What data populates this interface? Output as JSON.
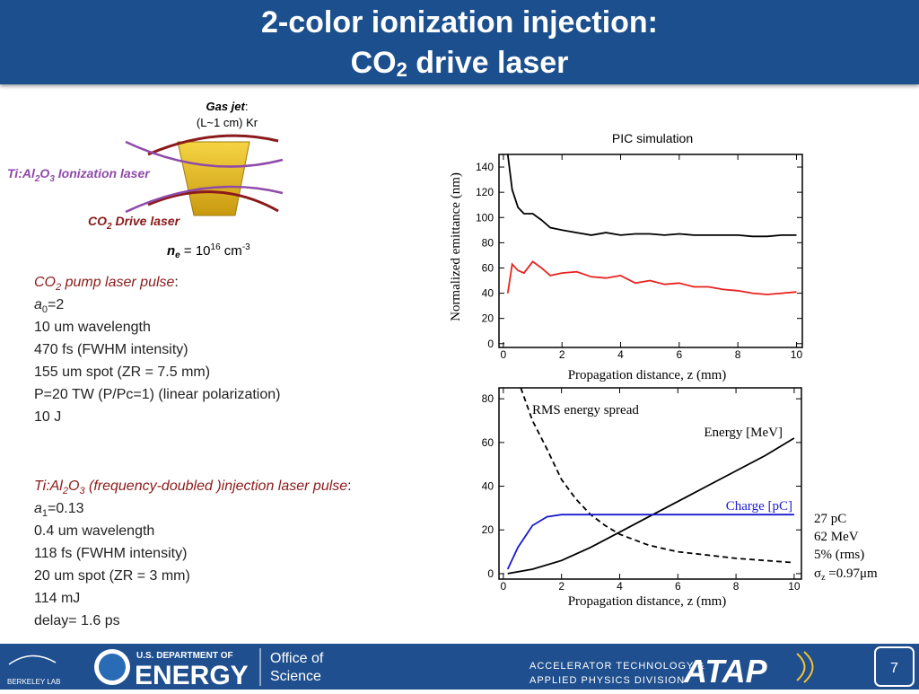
{
  "header": {
    "title_line1": "2-color ionization injection:",
    "title_line2": [
      "CO",
      "2",
      " drive laser"
    ]
  },
  "diagram": {
    "gas_jet": [
      "Gas jet",
      ":"
    ],
    "gas_spec": "(L~1 cm) Kr",
    "ionization_laser": [
      "Ti:Al",
      "2",
      "O",
      "3",
      " Ionization laser"
    ],
    "drive_laser": [
      "CO",
      "2",
      " Drive laser"
    ],
    "density": [
      "n",
      "e",
      " = 10",
      "16",
      " cm",
      "-3"
    ]
  },
  "pump": {
    "title": [
      "CO",
      "2",
      " pump laser pulse",
      ":"
    ],
    "a0": [
      "a",
      "0",
      "=2"
    ],
    "lines": [
      "10 um wavelength",
      "470 fs (FWHM intensity)",
      "155 um spot (ZR = 7.5 mm)",
      "P=20 TW  (P/Pc=1) (linear polarization)",
      "10 J"
    ]
  },
  "injection": {
    "title": [
      "Ti:Al",
      "2",
      "O",
      "3",
      " (frequency-doubled )injection laser pulse",
      ":"
    ],
    "a1": [
      "a",
      "1",
      "=0.13"
    ],
    "lines": [
      "0.4 um wavelength",
      "118 fs (FWHM intensity)",
      "20 um spot (ZR = 3 mm)",
      "114 mJ",
      "delay= 1.6 ps"
    ]
  },
  "results": [
    "27 pC",
    "62 MeV",
    "5% (rms)"
  ],
  "sigma": [
    "σ",
    "z",
    " =0.97μm"
  ],
  "chart_data": [
    {
      "type": "line",
      "title": "PIC simulation",
      "y_label": "Normalized emittance (nm)",
      "x_label": "Propagation distance, z (mm)",
      "xlim": [
        -0.15,
        10.2
      ],
      "ylim": [
        -3,
        150
      ],
      "xticks": [
        0,
        2,
        4,
        6,
        8,
        10
      ],
      "yticks": [
        0,
        20,
        40,
        60,
        80,
        100,
        120,
        140
      ],
      "series": [
        {
          "color": "#000000",
          "x": [
            0.15,
            0.3,
            0.5,
            0.7,
            1,
            1.3,
            1.6,
            2,
            2.5,
            3,
            3.5,
            4,
            4.5,
            5,
            5.5,
            6,
            6.5,
            7,
            7.5,
            8,
            8.5,
            9,
            9.5,
            10
          ],
          "values": [
            150,
            122,
            108,
            103,
            103,
            98,
            92,
            90,
            88,
            86,
            88,
            86,
            87,
            87,
            86,
            87,
            86,
            86,
            86,
            86,
            85,
            85,
            86,
            86
          ]
        },
        {
          "color": "#e8221f",
          "x": [
            0.15,
            0.3,
            0.5,
            0.7,
            1,
            1.3,
            1.6,
            2,
            2.5,
            3,
            3.5,
            4,
            4.5,
            5,
            5.5,
            6,
            6.5,
            7,
            7.5,
            8,
            8.5,
            9,
            9.5,
            10
          ],
          "values": [
            40,
            63,
            58,
            56,
            65,
            60,
            54,
            56,
            57,
            53,
            52,
            54,
            48,
            50,
            47,
            48,
            45,
            45,
            43,
            42,
            40,
            39,
            40,
            41
          ]
        }
      ]
    },
    {
      "type": "line",
      "x_label": "Propagation distance, z (mm)",
      "xlim": [
        -0.15,
        10.25
      ],
      "ylim": [
        -2.5,
        85
      ],
      "xticks": [
        0,
        2,
        4,
        6,
        8,
        10
      ],
      "yticks": [
        0,
        20,
        40,
        60,
        80
      ],
      "series": [
        {
          "name": "RMS energy spread",
          "color": "#000000",
          "line_style": "dashed",
          "x": [
            0.6,
            1,
            1.5,
            2,
            2.5,
            3,
            3.5,
            4,
            5,
            6,
            7,
            8,
            9,
            10
          ],
          "values": [
            85,
            70,
            57,
            43,
            34,
            27,
            22,
            18,
            13,
            10,
            8.5,
            7,
            6,
            5
          ]
        },
        {
          "name": "Energy [MeV]",
          "color": "#000000",
          "x": [
            0.15,
            1,
            2,
            3,
            4,
            5,
            6,
            7,
            8,
            9,
            10
          ],
          "values": [
            0,
            2,
            6,
            12,
            19,
            26,
            33,
            40,
            47,
            54,
            62
          ]
        },
        {
          "name": "Charge [pC]",
          "color": "#1a1acc",
          "x": [
            0.15,
            0.5,
            1,
            1.5,
            2,
            3,
            10
          ],
          "values": [
            2,
            12,
            22,
            26,
            27,
            27,
            27
          ]
        }
      ]
    }
  ],
  "footer": {
    "lab": "BERKELEY LAB",
    "doe_top": "U.S. DEPARTMENT OF",
    "doe_main": "ENERGY",
    "office": [
      "Office of",
      "Science"
    ],
    "division": [
      "ACCELERATOR TECHNOLOGY &",
      "APPLIED PHYSICS DIVISION"
    ],
    "atap": "ATAP",
    "page": "7"
  }
}
